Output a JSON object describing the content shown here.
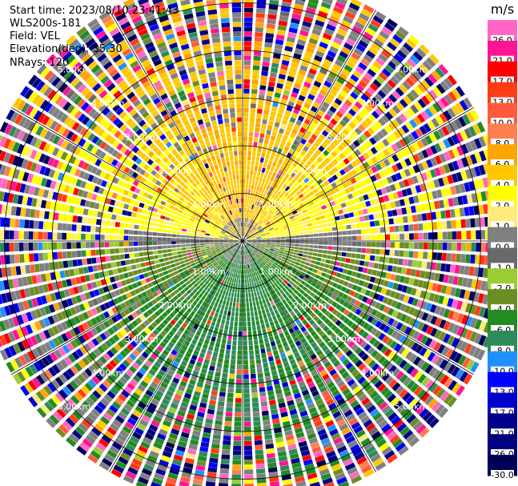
{
  "header": {
    "start_time": "Start time: 2023/08/10 23:41:43",
    "instrument": "WLS200s-181",
    "field": "Field: VEL",
    "elevation": "Elevation(deg): 35.30",
    "nrays": "NRays: 120"
  },
  "chart_data": {
    "type": "heatmap",
    "projection": "polar-ppi",
    "n_rays": 120,
    "range_rings_km": [
      1.0,
      2.0,
      3.0,
      4.0,
      5.0
    ],
    "max_range_km": 5.6,
    "gate_km": 0.1,
    "ring_labels": [
      "1.00km",
      "2.00km",
      "3.00km",
      "4.00km",
      "5.00km"
    ],
    "spokes_deg": [
      0,
      30,
      60,
      90,
      120,
      150,
      180,
      210,
      240,
      270,
      300,
      330
    ],
    "colorbar": {
      "unit": "m/s",
      "ticks": [
        "26.0",
        "21.0",
        "17.0",
        "13.0",
        "10.0",
        "8.0",
        "6.0",
        "4.0",
        "2.0",
        "1.0",
        "0.0",
        "-1.0",
        "-2.0",
        "-4.0",
        "-6.0",
        "-8.0",
        "-10.0",
        "-13.0",
        "-17.0",
        "-21.0",
        "-26.0",
        "-30.0"
      ],
      "colors": [
        "#ff66c4",
        "#ff1493",
        "#ff0000",
        "#ff3c14",
        "#ff5a3c",
        "#ff7f50",
        "#ffa500",
        "#ffc800",
        "#ffff00",
        "#ffeb7a",
        "#808080",
        "#696969",
        "#9acd32",
        "#6b8e23",
        "#228b22",
        "#2e8b57",
        "#1e90ff",
        "#0000ff",
        "#0000cd",
        "#00008b",
        "#000080",
        "#000055"
      ]
    },
    "description_of_field": "Near field (<3 km): north half positive (yellow/orange), south half negative (green); east-west strip near zero (gray). Beyond ~3 km: mixed noisy colors."
  }
}
